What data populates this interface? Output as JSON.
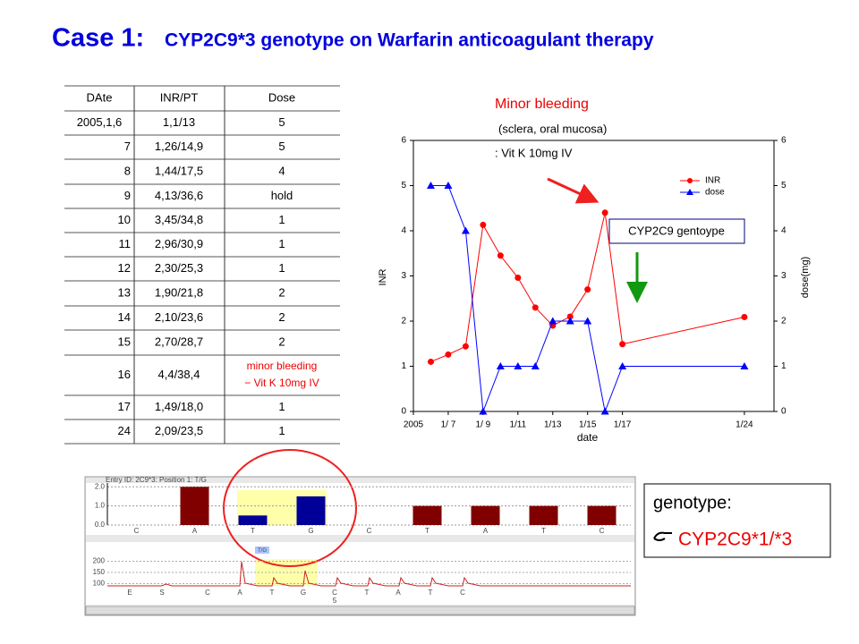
{
  "header": {
    "case": "Case 1:",
    "title": "CYP2C9*3 genotype on Warfarin anticoagulant therapy"
  },
  "table": {
    "columns": [
      "DAte",
      "INR/PT",
      "Dose"
    ],
    "rows": [
      [
        "2005,1,6",
        "1,1/13",
        "5"
      ],
      [
        "7",
        "1,26/14,9",
        "5"
      ],
      [
        "8",
        "1,44/17,5",
        "4"
      ],
      [
        "9",
        "4,13/36,6",
        "hold"
      ],
      [
        "10",
        "3,45/34,8",
        "1"
      ],
      [
        "11",
        "2,96/30,9",
        "1"
      ],
      [
        "12",
        "2,30/25,3",
        "1"
      ],
      [
        "13",
        "1,90/21,8",
        "2"
      ],
      [
        "14",
        "2,10/23,6",
        "2"
      ],
      [
        "15",
        "2,70/28,7",
        "2"
      ],
      [
        "16",
        "4,4/38,4",
        [
          "minor bleeding",
          "− Vit K  10mg IV"
        ]
      ],
      [
        "17",
        "1,49/18,0",
        "1"
      ],
      [
        "24",
        "2,09/23,5",
        "1"
      ]
    ]
  },
  "chart_data": [
    {
      "type": "line",
      "xlabel": "date",
      "ylabel": "INR",
      "y2label": "dose(mg)",
      "x": [
        6,
        7,
        8,
        9,
        10,
        11,
        12,
        13,
        14,
        15,
        16,
        17,
        24
      ],
      "xlim": [
        5,
        25.7
      ],
      "xticks": [
        {
          "value": 5,
          "label": "2005"
        },
        {
          "value": 7,
          "label": "1/ 7"
        },
        {
          "value": 9,
          "label": "1/ 9"
        },
        {
          "value": 11,
          "label": "1/11"
        },
        {
          "value": 13,
          "label": "1/13"
        },
        {
          "value": 15,
          "label": "1/15"
        },
        {
          "value": 17,
          "label": "1/17"
        },
        {
          "value": 24,
          "label": "1/24"
        }
      ],
      "ylim": [
        0,
        6
      ],
      "yticks": [
        0,
        1,
        2,
        3,
        4,
        5,
        6
      ],
      "y2lim": [
        0,
        6
      ],
      "y2ticks": [
        0,
        1,
        2,
        3,
        4,
        5,
        6
      ],
      "legend": "upper right",
      "series": [
        {
          "name": "INR",
          "color": "#ff0000",
          "marker": "circle",
          "values": [
            1.1,
            1.26,
            1.44,
            4.13,
            3.45,
            2.96,
            2.3,
            1.9,
            2.1,
            2.7,
            4.4,
            1.49,
            2.09
          ]
        },
        {
          "name": "dose",
          "color": "#0000ff",
          "marker": "triangle",
          "axis": "y2",
          "values": [
            5,
            5,
            4,
            0,
            1,
            1,
            1,
            2,
            2,
            2,
            0,
            1,
            1
          ]
        }
      ],
      "annotations": {
        "bleeding": "Minor  bleeding",
        "site": "(sclera, oral mucosa)",
        "treatment": ": Vit K 10mg IV",
        "genotype_box": "CYP2C9 gentoype"
      }
    },
    {
      "type": "bar",
      "title": "Entry ID: 2C9*3: Position 1: T/G",
      "categories": [
        "C",
        "A",
        "T",
        "G",
        "C",
        "T",
        "A",
        "T",
        "C"
      ],
      "values": [
        0,
        2,
        0.5,
        1.5,
        0,
        1,
        1,
        1,
        1
      ],
      "colors": [
        "#800000",
        "#800000",
        "#000099",
        "#000099",
        "#800000",
        "#800000",
        "#800000",
        "#800000",
        "#800000"
      ],
      "ylim": [
        0,
        2.2
      ],
      "yticks": [
        {
          "value": 0,
          "label": "0.0"
        },
        {
          "value": 1,
          "label": "1.0"
        },
        {
          "value": 2,
          "label": "2.0"
        }
      ]
    }
  ],
  "pyrogram": {
    "position": "T/G",
    "ylim": [
      90,
      210
    ],
    "yticks": [
      100,
      150,
      200
    ],
    "bases": [
      "E",
      "S",
      "C",
      "A",
      "T",
      "G",
      "C",
      "T",
      "A",
      "T",
      "C"
    ],
    "index": "5"
  },
  "result": {
    "label": "genotype:",
    "genotype": "CYP2C9*1/*3"
  }
}
